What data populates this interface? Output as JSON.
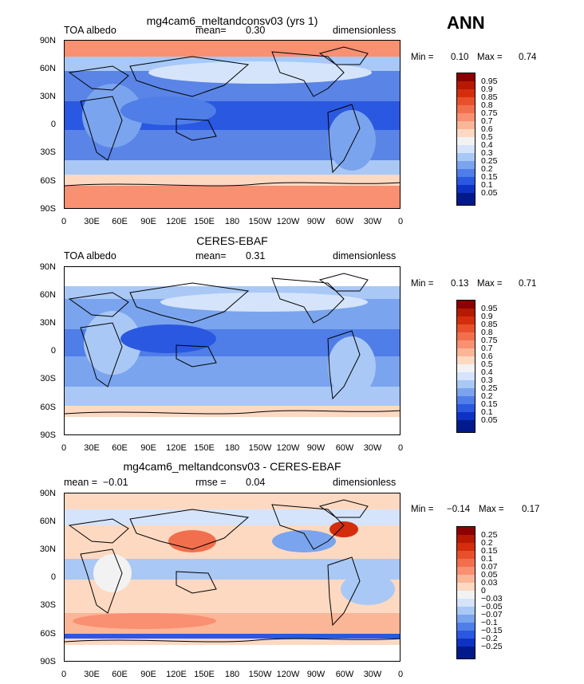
{
  "season": "ANN",
  "y_labels": [
    "90N",
    "60N",
    "30N",
    "0",
    "30S",
    "60S",
    "90S"
  ],
  "x_labels": [
    "0",
    "30E",
    "60E",
    "90E",
    "120E",
    "150E",
    "180",
    "150W",
    "120W",
    "90W",
    "60W",
    "30W",
    "0"
  ],
  "panels": [
    {
      "title": "mg4cam6_meltandconsv03 (yrs 1)",
      "left": "TOA albedo",
      "mid_label": "mean=",
      "mid_value": "0.30",
      "right": "dimensionless",
      "min_label": "Min =",
      "min": "0.10",
      "max_label": "Max =",
      "max": "0.74",
      "legend_levels": [
        "0.95",
        "0.9",
        "0.85",
        "0.8",
        "0.75",
        "0.7",
        "0.6",
        "0.5",
        "0.4",
        "0.3",
        "0.25",
        "0.2",
        "0.15",
        "0.1",
        "0.05"
      ],
      "legend_colors": [
        "#8b0000",
        "#b51a00",
        "#d42d0c",
        "#e8502c",
        "#f26f4d",
        "#f89071",
        "#fbb597",
        "#fdd9c2",
        "#f2f2f2",
        "#d5e4fb",
        "#a9c8f5",
        "#7aa4ee",
        "#4f7ee8",
        "#2a58e0",
        "#0d32c4",
        "#001a8c"
      ]
    },
    {
      "title": "CERES-EBAF",
      "left": "TOA albedo",
      "mid_label": "mean=",
      "mid_value": "0.31",
      "right": "dimensionless",
      "min_label": "Min =",
      "min": "0.13",
      "max_label": "Max =",
      "max": "0.71",
      "legend_levels": [
        "0.95",
        "0.9",
        "0.85",
        "0.8",
        "0.75",
        "0.7",
        "0.6",
        "0.5",
        "0.4",
        "0.3",
        "0.25",
        "0.2",
        "0.15",
        "0.1",
        "0.05"
      ],
      "legend_colors": [
        "#8b0000",
        "#b51a00",
        "#d42d0c",
        "#e8502c",
        "#f26f4d",
        "#f89071",
        "#fbb597",
        "#fdd9c2",
        "#f2f2f2",
        "#d5e4fb",
        "#a9c8f5",
        "#7aa4ee",
        "#4f7ee8",
        "#2a58e0",
        "#0d32c4",
        "#001a8c"
      ]
    },
    {
      "title": "mg4cam6_meltandconsv03 - CERES-EBAF",
      "left": "mean =  −0.01",
      "mid_label": "rmse =",
      "mid_value": "0.04",
      "right": "dimensionless",
      "min_label": "Min =",
      "min": "−0.14",
      "max_label": "Max =",
      "max": "0.17",
      "legend_levels": [
        "0.25",
        "0.2",
        "0.15",
        "0.1",
        "0.07",
        "0.05",
        "0.03",
        "0",
        "−0.03",
        "−0.05",
        "−0.07",
        "−0.1",
        "−0.15",
        "−0.2",
        "−0.25"
      ],
      "legend_colors": [
        "#8b0000",
        "#b51a00",
        "#d42d0c",
        "#e8502c",
        "#f26f4d",
        "#f89071",
        "#fbb597",
        "#fdd9c2",
        "#f2f2f2",
        "#d5e4fb",
        "#a9c8f5",
        "#7aa4ee",
        "#4f7ee8",
        "#2a58e0",
        "#0d32c4",
        "#001a8c"
      ]
    }
  ]
}
